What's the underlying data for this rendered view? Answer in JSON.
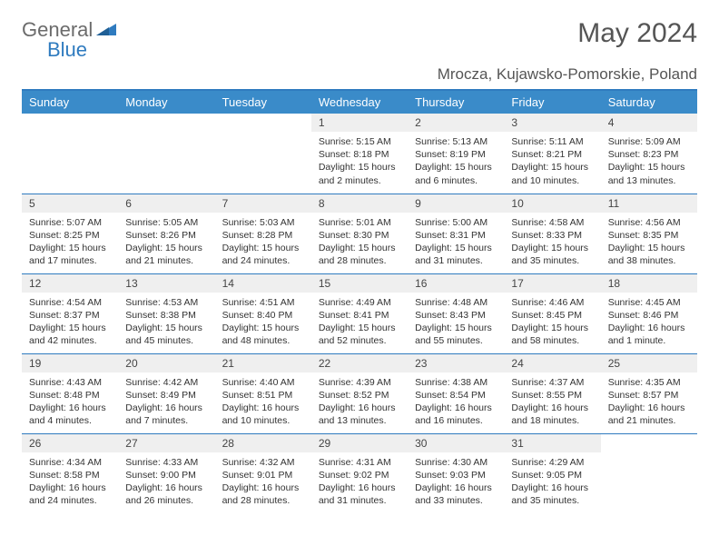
{
  "brand": {
    "text1": "General",
    "text2": "Blue"
  },
  "title": "May 2024",
  "location": "Mrocza, Kujawsko-Pomorskie, Poland",
  "colors": {
    "header_bg": "#3a8bc9",
    "header_text": "#ffffff",
    "rule": "#2f7bbf",
    "daynum_bg": "#efefef",
    "text": "#333333",
    "title_text": "#555555",
    "logo_gray": "#6b6b6b",
    "logo_blue": "#2f7bbf",
    "page_bg": "#ffffff"
  },
  "day_headers": [
    "Sunday",
    "Monday",
    "Tuesday",
    "Wednesday",
    "Thursday",
    "Friday",
    "Saturday"
  ],
  "weeks": [
    [
      {
        "n": "",
        "sr": "",
        "ss": "",
        "dl": ""
      },
      {
        "n": "",
        "sr": "",
        "ss": "",
        "dl": ""
      },
      {
        "n": "",
        "sr": "",
        "ss": "",
        "dl": ""
      },
      {
        "n": "1",
        "sr": "Sunrise: 5:15 AM",
        "ss": "Sunset: 8:18 PM",
        "dl": "Daylight: 15 hours and 2 minutes."
      },
      {
        "n": "2",
        "sr": "Sunrise: 5:13 AM",
        "ss": "Sunset: 8:19 PM",
        "dl": "Daylight: 15 hours and 6 minutes."
      },
      {
        "n": "3",
        "sr": "Sunrise: 5:11 AM",
        "ss": "Sunset: 8:21 PM",
        "dl": "Daylight: 15 hours and 10 minutes."
      },
      {
        "n": "4",
        "sr": "Sunrise: 5:09 AM",
        "ss": "Sunset: 8:23 PM",
        "dl": "Daylight: 15 hours and 13 minutes."
      }
    ],
    [
      {
        "n": "5",
        "sr": "Sunrise: 5:07 AM",
        "ss": "Sunset: 8:25 PM",
        "dl": "Daylight: 15 hours and 17 minutes."
      },
      {
        "n": "6",
        "sr": "Sunrise: 5:05 AM",
        "ss": "Sunset: 8:26 PM",
        "dl": "Daylight: 15 hours and 21 minutes."
      },
      {
        "n": "7",
        "sr": "Sunrise: 5:03 AM",
        "ss": "Sunset: 8:28 PM",
        "dl": "Daylight: 15 hours and 24 minutes."
      },
      {
        "n": "8",
        "sr": "Sunrise: 5:01 AM",
        "ss": "Sunset: 8:30 PM",
        "dl": "Daylight: 15 hours and 28 minutes."
      },
      {
        "n": "9",
        "sr": "Sunrise: 5:00 AM",
        "ss": "Sunset: 8:31 PM",
        "dl": "Daylight: 15 hours and 31 minutes."
      },
      {
        "n": "10",
        "sr": "Sunrise: 4:58 AM",
        "ss": "Sunset: 8:33 PM",
        "dl": "Daylight: 15 hours and 35 minutes."
      },
      {
        "n": "11",
        "sr": "Sunrise: 4:56 AM",
        "ss": "Sunset: 8:35 PM",
        "dl": "Daylight: 15 hours and 38 minutes."
      }
    ],
    [
      {
        "n": "12",
        "sr": "Sunrise: 4:54 AM",
        "ss": "Sunset: 8:37 PM",
        "dl": "Daylight: 15 hours and 42 minutes."
      },
      {
        "n": "13",
        "sr": "Sunrise: 4:53 AM",
        "ss": "Sunset: 8:38 PM",
        "dl": "Daylight: 15 hours and 45 minutes."
      },
      {
        "n": "14",
        "sr": "Sunrise: 4:51 AM",
        "ss": "Sunset: 8:40 PM",
        "dl": "Daylight: 15 hours and 48 minutes."
      },
      {
        "n": "15",
        "sr": "Sunrise: 4:49 AM",
        "ss": "Sunset: 8:41 PM",
        "dl": "Daylight: 15 hours and 52 minutes."
      },
      {
        "n": "16",
        "sr": "Sunrise: 4:48 AM",
        "ss": "Sunset: 8:43 PM",
        "dl": "Daylight: 15 hours and 55 minutes."
      },
      {
        "n": "17",
        "sr": "Sunrise: 4:46 AM",
        "ss": "Sunset: 8:45 PM",
        "dl": "Daylight: 15 hours and 58 minutes."
      },
      {
        "n": "18",
        "sr": "Sunrise: 4:45 AM",
        "ss": "Sunset: 8:46 PM",
        "dl": "Daylight: 16 hours and 1 minute."
      }
    ],
    [
      {
        "n": "19",
        "sr": "Sunrise: 4:43 AM",
        "ss": "Sunset: 8:48 PM",
        "dl": "Daylight: 16 hours and 4 minutes."
      },
      {
        "n": "20",
        "sr": "Sunrise: 4:42 AM",
        "ss": "Sunset: 8:49 PM",
        "dl": "Daylight: 16 hours and 7 minutes."
      },
      {
        "n": "21",
        "sr": "Sunrise: 4:40 AM",
        "ss": "Sunset: 8:51 PM",
        "dl": "Daylight: 16 hours and 10 minutes."
      },
      {
        "n": "22",
        "sr": "Sunrise: 4:39 AM",
        "ss": "Sunset: 8:52 PM",
        "dl": "Daylight: 16 hours and 13 minutes."
      },
      {
        "n": "23",
        "sr": "Sunrise: 4:38 AM",
        "ss": "Sunset: 8:54 PM",
        "dl": "Daylight: 16 hours and 16 minutes."
      },
      {
        "n": "24",
        "sr": "Sunrise: 4:37 AM",
        "ss": "Sunset: 8:55 PM",
        "dl": "Daylight: 16 hours and 18 minutes."
      },
      {
        "n": "25",
        "sr": "Sunrise: 4:35 AM",
        "ss": "Sunset: 8:57 PM",
        "dl": "Daylight: 16 hours and 21 minutes."
      }
    ],
    [
      {
        "n": "26",
        "sr": "Sunrise: 4:34 AM",
        "ss": "Sunset: 8:58 PM",
        "dl": "Daylight: 16 hours and 24 minutes."
      },
      {
        "n": "27",
        "sr": "Sunrise: 4:33 AM",
        "ss": "Sunset: 9:00 PM",
        "dl": "Daylight: 16 hours and 26 minutes."
      },
      {
        "n": "28",
        "sr": "Sunrise: 4:32 AM",
        "ss": "Sunset: 9:01 PM",
        "dl": "Daylight: 16 hours and 28 minutes."
      },
      {
        "n": "29",
        "sr": "Sunrise: 4:31 AM",
        "ss": "Sunset: 9:02 PM",
        "dl": "Daylight: 16 hours and 31 minutes."
      },
      {
        "n": "30",
        "sr": "Sunrise: 4:30 AM",
        "ss": "Sunset: 9:03 PM",
        "dl": "Daylight: 16 hours and 33 minutes."
      },
      {
        "n": "31",
        "sr": "Sunrise: 4:29 AM",
        "ss": "Sunset: 9:05 PM",
        "dl": "Daylight: 16 hours and 35 minutes."
      },
      {
        "n": "",
        "sr": "",
        "ss": "",
        "dl": ""
      }
    ]
  ]
}
